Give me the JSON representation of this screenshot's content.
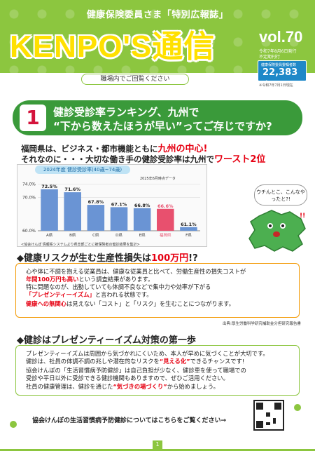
{
  "header": {
    "subhead": "健康保険委員さま「特別広報誌」",
    "title": "KENPO'S通信",
    "vol": "vol.70",
    "issue_date": "令和7年8月6日発行",
    "issue_type": "不定期刊行",
    "count_label": "健康保険委員委嘱者数",
    "count_value": "22,383名",
    "count_note": "※令和7年7月1日現在",
    "workplace_note": "職場内でご回覧ください"
  },
  "section1": {
    "number": "1",
    "title_line1": "健診受診率ランキング、九州で",
    "title_line2": "“下から数えたほうが早い”ってご存じですか?",
    "intro1_a": "福岡県は、ビジネス・都市機能ともに",
    "intro1_b": "九州の中心!",
    "intro2_a": "それなのに・・・大切な働き手の健診受診率は九州で",
    "intro2_b": "ワースト2位",
    "bubble": "ウチんとこ、こんなやったと?!"
  },
  "chart_data": {
    "type": "bar",
    "title": "2024年度 健診受診率(40歳~74歳)",
    "caption": "2025年6月時点データ",
    "categories": [
      "A県",
      "B県",
      "C県",
      "D県",
      "E県",
      "福岡県",
      "F県"
    ],
    "values": [
      72.5,
      71.6,
      67.8,
      67.1,
      66.8,
      66.6,
      61.1
    ],
    "value_labels": [
      "72.5%",
      "71.6%",
      "67.8%",
      "67.1%",
      "66.8%",
      "66.6%",
      "61.1%"
    ],
    "highlight": "福岡県",
    "ylim": [
      60,
      75
    ],
    "yticks": [
      "74.0%",
      "70.0%",
      "60.0%"
    ],
    "note": "<協会けんぽ 情報系システムより県支部ごとに被保険者の健診結果を集計>",
    "colors": {
      "bar": "#6a94d4",
      "highlight": "#e8506e"
    }
  },
  "section2": {
    "heading_a": "◆健康リスクが生む生産性損失は",
    "heading_b": "100万円",
    "heading_c": "!?",
    "lines": [
      "心や体に不調を抱える従業員は、健康な従業員と比べて、労働生産性の損失コストが",
      "年間100万円も高い",
      "という調査結果があります。",
      "特に問題なのが、出勤していても体調不良などで集中力や効率が下がる",
      "「プレゼンティーイズム」",
      "と言われる状態です。",
      "健康への無関心",
      "は見えない「コスト」と「リスク」を生むことにつながります。"
    ],
    "source": "出典:厚生労働科学研究補助金分担研究報告書"
  },
  "section3": {
    "heading_a": "◆健診はプレゼンティーイズム対策の",
    "heading_b": "第一歩",
    "lines": [
      "プレゼンティーイズムは周囲から気づかれにくいため、本人が早めに気づくことが大切です。",
      "健診は、社員の体調不調の兆しや潜在的なリスクを",
      "“見える化”",
      "できるチャンスです!",
      "協会けんぽの「生活習慣病予防健診」は自己負担が少なく、健診車を使って職場での",
      "受診や平日以外に受診できる健診機関もありますので、ぜひご活用ください。",
      "社員の健康管理は、健診を通じた",
      "“気づきの場づくり”",
      "から始めましょう。"
    ],
    "bottom_text": "協会けんぽの生活習慣病予防健診についてはこちらをご覧ください→"
  },
  "page_number": "1"
}
